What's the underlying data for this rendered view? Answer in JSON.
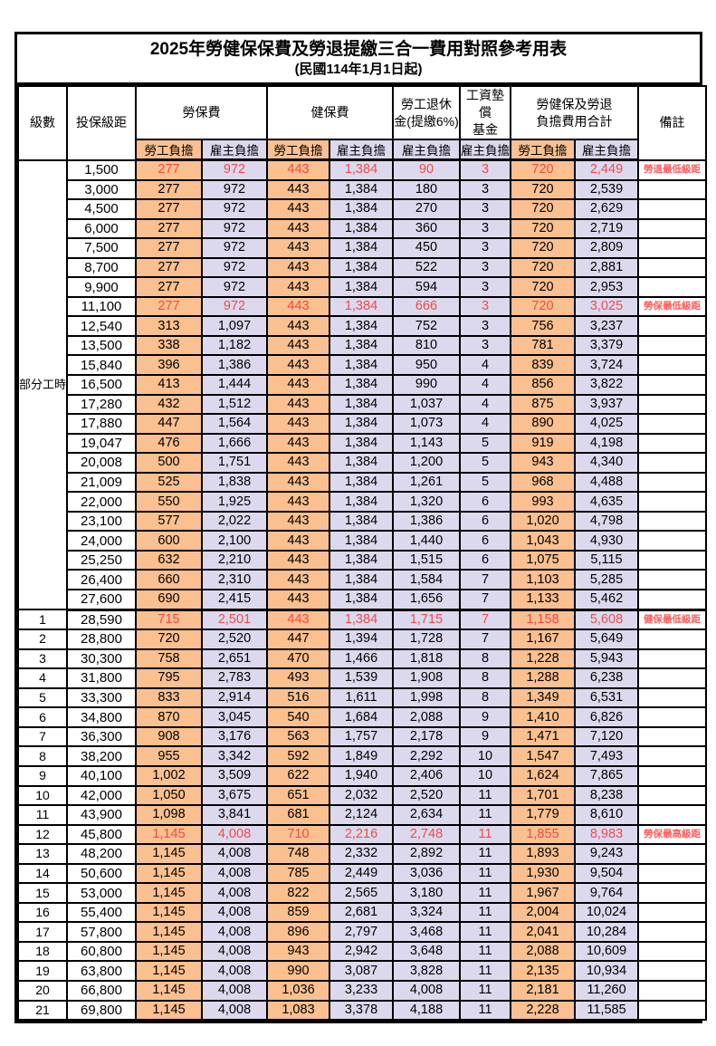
{
  "title": "2025年勞健保保費及勞退提繳三合一費用對照參考用表",
  "subtitle": "(民國114年1月1日起)",
  "colors": {
    "employee_bg": "#FAC090",
    "employer_bg": "#DCD9EE",
    "highlight_red": "#F04A4A",
    "note_red": "#FF5A5A",
    "border": "#000000"
  },
  "header": {
    "level": "級數",
    "bracket": "投保級距",
    "labor_group": "勞保費",
    "health_group": "健保費",
    "pension_group": "勞工退休\n金(提繳6%)",
    "wage_fund_group": "工資墊償\n基金",
    "total_group": "勞健保及勞退\n負擔費用合計",
    "note": "備註",
    "employee": "勞工負擔",
    "employer": "雇主負擔"
  },
  "level_group": {
    "label": "部分工時",
    "span": 23
  },
  "rows": [
    {
      "level": "",
      "bracket": "1,500",
      "labor_emp": "277",
      "labor_er": "972",
      "health_emp": "443",
      "health_er": "1,384",
      "pension": "90",
      "wage_fund": "3",
      "total_emp": "720",
      "total_er": "2,449",
      "note": "勞退最低級距",
      "red": true
    },
    {
      "level": "",
      "bracket": "3,000",
      "labor_emp": "277",
      "labor_er": "972",
      "health_emp": "443",
      "health_er": "1,384",
      "pension": "180",
      "wage_fund": "3",
      "total_emp": "720",
      "total_er": "2,539",
      "note": ""
    },
    {
      "level": "",
      "bracket": "4,500",
      "labor_emp": "277",
      "labor_er": "972",
      "health_emp": "443",
      "health_er": "1,384",
      "pension": "270",
      "wage_fund": "3",
      "total_emp": "720",
      "total_er": "2,629",
      "note": ""
    },
    {
      "level": "",
      "bracket": "6,000",
      "labor_emp": "277",
      "labor_er": "972",
      "health_emp": "443",
      "health_er": "1,384",
      "pension": "360",
      "wage_fund": "3",
      "total_emp": "720",
      "total_er": "2,719",
      "note": ""
    },
    {
      "level": "",
      "bracket": "7,500",
      "labor_emp": "277",
      "labor_er": "972",
      "health_emp": "443",
      "health_er": "1,384",
      "pension": "450",
      "wage_fund": "3",
      "total_emp": "720",
      "total_er": "2,809",
      "note": ""
    },
    {
      "level": "",
      "bracket": "8,700",
      "labor_emp": "277",
      "labor_er": "972",
      "health_emp": "443",
      "health_er": "1,384",
      "pension": "522",
      "wage_fund": "3",
      "total_emp": "720",
      "total_er": "2,881",
      "note": ""
    },
    {
      "level": "",
      "bracket": "9,900",
      "labor_emp": "277",
      "labor_er": "972",
      "health_emp": "443",
      "health_er": "1,384",
      "pension": "594",
      "wage_fund": "3",
      "total_emp": "720",
      "total_er": "2,953",
      "note": ""
    },
    {
      "level": "",
      "bracket": "11,100",
      "labor_emp": "277",
      "labor_er": "972",
      "health_emp": "443",
      "health_er": "1,384",
      "pension": "666",
      "wage_fund": "3",
      "total_emp": "720",
      "total_er": "3,025",
      "note": "勞保最低級距",
      "red": true
    },
    {
      "level": "",
      "bracket": "12,540",
      "labor_emp": "313",
      "labor_er": "1,097",
      "health_emp": "443",
      "health_er": "1,384",
      "pension": "752",
      "wage_fund": "3",
      "total_emp": "756",
      "total_er": "3,237",
      "note": ""
    },
    {
      "level": "",
      "bracket": "13,500",
      "labor_emp": "338",
      "labor_er": "1,182",
      "health_emp": "443",
      "health_er": "1,384",
      "pension": "810",
      "wage_fund": "3",
      "total_emp": "781",
      "total_er": "3,379",
      "note": ""
    },
    {
      "level": "",
      "bracket": "15,840",
      "labor_emp": "396",
      "labor_er": "1,386",
      "health_emp": "443",
      "health_er": "1,384",
      "pension": "950",
      "wage_fund": "4",
      "total_emp": "839",
      "total_er": "3,724",
      "note": ""
    },
    {
      "level": "",
      "bracket": "16,500",
      "labor_emp": "413",
      "labor_er": "1,444",
      "health_emp": "443",
      "health_er": "1,384",
      "pension": "990",
      "wage_fund": "4",
      "total_emp": "856",
      "total_er": "3,822",
      "note": ""
    },
    {
      "level": "",
      "bracket": "17,280",
      "labor_emp": "432",
      "labor_er": "1,512",
      "health_emp": "443",
      "health_er": "1,384",
      "pension": "1,037",
      "wage_fund": "4",
      "total_emp": "875",
      "total_er": "3,937",
      "note": ""
    },
    {
      "level": "",
      "bracket": "17,880",
      "labor_emp": "447",
      "labor_er": "1,564",
      "health_emp": "443",
      "health_er": "1,384",
      "pension": "1,073",
      "wage_fund": "4",
      "total_emp": "890",
      "total_er": "4,025",
      "note": ""
    },
    {
      "level": "",
      "bracket": "19,047",
      "labor_emp": "476",
      "labor_er": "1,666",
      "health_emp": "443",
      "health_er": "1,384",
      "pension": "1,143",
      "wage_fund": "5",
      "total_emp": "919",
      "total_er": "4,198",
      "note": ""
    },
    {
      "level": "",
      "bracket": "20,008",
      "labor_emp": "500",
      "labor_er": "1,751",
      "health_emp": "443",
      "health_er": "1,384",
      "pension": "1,200",
      "wage_fund": "5",
      "total_emp": "943",
      "total_er": "4,340",
      "note": ""
    },
    {
      "level": "",
      "bracket": "21,009",
      "labor_emp": "525",
      "labor_er": "1,838",
      "health_emp": "443",
      "health_er": "1,384",
      "pension": "1,261",
      "wage_fund": "5",
      "total_emp": "968",
      "total_er": "4,488",
      "note": ""
    },
    {
      "level": "",
      "bracket": "22,000",
      "labor_emp": "550",
      "labor_er": "1,925",
      "health_emp": "443",
      "health_er": "1,384",
      "pension": "1,320",
      "wage_fund": "6",
      "total_emp": "993",
      "total_er": "4,635",
      "note": ""
    },
    {
      "level": "",
      "bracket": "23,100",
      "labor_emp": "577",
      "labor_er": "2,022",
      "health_emp": "443",
      "health_er": "1,384",
      "pension": "1,386",
      "wage_fund": "6",
      "total_emp": "1,020",
      "total_er": "4,798",
      "note": ""
    },
    {
      "level": "",
      "bracket": "24,000",
      "labor_emp": "600",
      "labor_er": "2,100",
      "health_emp": "443",
      "health_er": "1,384",
      "pension": "1,440",
      "wage_fund": "6",
      "total_emp": "1,043",
      "total_er": "4,930",
      "note": ""
    },
    {
      "level": "",
      "bracket": "25,250",
      "labor_emp": "632",
      "labor_er": "2,210",
      "health_emp": "443",
      "health_er": "1,384",
      "pension": "1,515",
      "wage_fund": "6",
      "total_emp": "1,075",
      "total_er": "5,115",
      "note": ""
    },
    {
      "level": "",
      "bracket": "26,400",
      "labor_emp": "660",
      "labor_er": "2,310",
      "health_emp": "443",
      "health_er": "1,384",
      "pension": "1,584",
      "wage_fund": "7",
      "total_emp": "1,103",
      "total_er": "5,285",
      "note": ""
    },
    {
      "level": "",
      "bracket": "27,600",
      "labor_emp": "690",
      "labor_er": "2,415",
      "health_emp": "443",
      "health_er": "1,384",
      "pension": "1,656",
      "wage_fund": "7",
      "total_emp": "1,133",
      "total_er": "5,462",
      "note": "",
      "group_end": true
    },
    {
      "level": "1",
      "bracket": "28,590",
      "labor_emp": "715",
      "labor_er": "2,501",
      "health_emp": "443",
      "health_er": "1,384",
      "pension": "1,715",
      "wage_fund": "7",
      "total_emp": "1,158",
      "total_er": "5,608",
      "note": "健保最低級距",
      "red": true
    },
    {
      "level": "2",
      "bracket": "28,800",
      "labor_emp": "720",
      "labor_er": "2,520",
      "health_emp": "447",
      "health_er": "1,394",
      "pension": "1,728",
      "wage_fund": "7",
      "total_emp": "1,167",
      "total_er": "5,649",
      "note": ""
    },
    {
      "level": "3",
      "bracket": "30,300",
      "labor_emp": "758",
      "labor_er": "2,651",
      "health_emp": "470",
      "health_er": "1,466",
      "pension": "1,818",
      "wage_fund": "8",
      "total_emp": "1,228",
      "total_er": "5,943",
      "note": ""
    },
    {
      "level": "4",
      "bracket": "31,800",
      "labor_emp": "795",
      "labor_er": "2,783",
      "health_emp": "493",
      "health_er": "1,539",
      "pension": "1,908",
      "wage_fund": "8",
      "total_emp": "1,288",
      "total_er": "6,238",
      "note": ""
    },
    {
      "level": "5",
      "bracket": "33,300",
      "labor_emp": "833",
      "labor_er": "2,914",
      "health_emp": "516",
      "health_er": "1,611",
      "pension": "1,998",
      "wage_fund": "8",
      "total_emp": "1,349",
      "total_er": "6,531",
      "note": ""
    },
    {
      "level": "6",
      "bracket": "34,800",
      "labor_emp": "870",
      "labor_er": "3,045",
      "health_emp": "540",
      "health_er": "1,684",
      "pension": "2,088",
      "wage_fund": "9",
      "total_emp": "1,410",
      "total_er": "6,826",
      "note": ""
    },
    {
      "level": "7",
      "bracket": "36,300",
      "labor_emp": "908",
      "labor_er": "3,176",
      "health_emp": "563",
      "health_er": "1,757",
      "pension": "2,178",
      "wage_fund": "9",
      "total_emp": "1,471",
      "total_er": "7,120",
      "note": ""
    },
    {
      "level": "8",
      "bracket": "38,200",
      "labor_emp": "955",
      "labor_er": "3,342",
      "health_emp": "592",
      "health_er": "1,849",
      "pension": "2,292",
      "wage_fund": "10",
      "total_emp": "1,547",
      "total_er": "7,493",
      "note": ""
    },
    {
      "level": "9",
      "bracket": "40,100",
      "labor_emp": "1,002",
      "labor_er": "3,509",
      "health_emp": "622",
      "health_er": "1,940",
      "pension": "2,406",
      "wage_fund": "10",
      "total_emp": "1,624",
      "total_er": "7,865",
      "note": ""
    },
    {
      "level": "10",
      "bracket": "42,000",
      "labor_emp": "1,050",
      "labor_er": "3,675",
      "health_emp": "651",
      "health_er": "2,032",
      "pension": "2,520",
      "wage_fund": "11",
      "total_emp": "1,701",
      "total_er": "8,238",
      "note": ""
    },
    {
      "level": "11",
      "bracket": "43,900",
      "labor_emp": "1,098",
      "labor_er": "3,841",
      "health_emp": "681",
      "health_er": "2,124",
      "pension": "2,634",
      "wage_fund": "11",
      "total_emp": "1,779",
      "total_er": "8,610",
      "note": ""
    },
    {
      "level": "12",
      "bracket": "45,800",
      "labor_emp": "1,145",
      "labor_er": "4,008",
      "health_emp": "710",
      "health_er": "2,216",
      "pension": "2,748",
      "wage_fund": "11",
      "total_emp": "1,855",
      "total_er": "8,983",
      "note": "勞保最高級距",
      "red": true
    },
    {
      "level": "13",
      "bracket": "48,200",
      "labor_emp": "1,145",
      "labor_er": "4,008",
      "health_emp": "748",
      "health_er": "2,332",
      "pension": "2,892",
      "wage_fund": "11",
      "total_emp": "1,893",
      "total_er": "9,243",
      "note": ""
    },
    {
      "level": "14",
      "bracket": "50,600",
      "labor_emp": "1,145",
      "labor_er": "4,008",
      "health_emp": "785",
      "health_er": "2,449",
      "pension": "3,036",
      "wage_fund": "11",
      "total_emp": "1,930",
      "total_er": "9,504",
      "note": ""
    },
    {
      "level": "15",
      "bracket": "53,000",
      "labor_emp": "1,145",
      "labor_er": "4,008",
      "health_emp": "822",
      "health_er": "2,565",
      "pension": "3,180",
      "wage_fund": "11",
      "total_emp": "1,967",
      "total_er": "9,764",
      "note": ""
    },
    {
      "level": "16",
      "bracket": "55,400",
      "labor_emp": "1,145",
      "labor_er": "4,008",
      "health_emp": "859",
      "health_er": "2,681",
      "pension": "3,324",
      "wage_fund": "11",
      "total_emp": "2,004",
      "total_er": "10,024",
      "note": ""
    },
    {
      "level": "17",
      "bracket": "57,800",
      "labor_emp": "1,145",
      "labor_er": "4,008",
      "health_emp": "896",
      "health_er": "2,797",
      "pension": "3,468",
      "wage_fund": "11",
      "total_emp": "2,041",
      "total_er": "10,284",
      "note": ""
    },
    {
      "level": "18",
      "bracket": "60,800",
      "labor_emp": "1,145",
      "labor_er": "4,008",
      "health_emp": "943",
      "health_er": "2,942",
      "pension": "3,648",
      "wage_fund": "11",
      "total_emp": "2,088",
      "total_er": "10,609",
      "note": ""
    },
    {
      "level": "19",
      "bracket": "63,800",
      "labor_emp": "1,145",
      "labor_er": "4,008",
      "health_emp": "990",
      "health_er": "3,087",
      "pension": "3,828",
      "wage_fund": "11",
      "total_emp": "2,135",
      "total_er": "10,934",
      "note": ""
    },
    {
      "level": "20",
      "bracket": "66,800",
      "labor_emp": "1,145",
      "labor_er": "4,008",
      "health_emp": "1,036",
      "health_er": "3,233",
      "pension": "4,008",
      "wage_fund": "11",
      "total_emp": "2,181",
      "total_er": "11,260",
      "note": ""
    },
    {
      "level": "21",
      "bracket": "69,800",
      "labor_emp": "1,145",
      "labor_er": "4,008",
      "health_emp": "1,083",
      "health_er": "3,378",
      "pension": "4,188",
      "wage_fund": "11",
      "total_emp": "2,228",
      "total_er": "11,585",
      "note": ""
    }
  ]
}
